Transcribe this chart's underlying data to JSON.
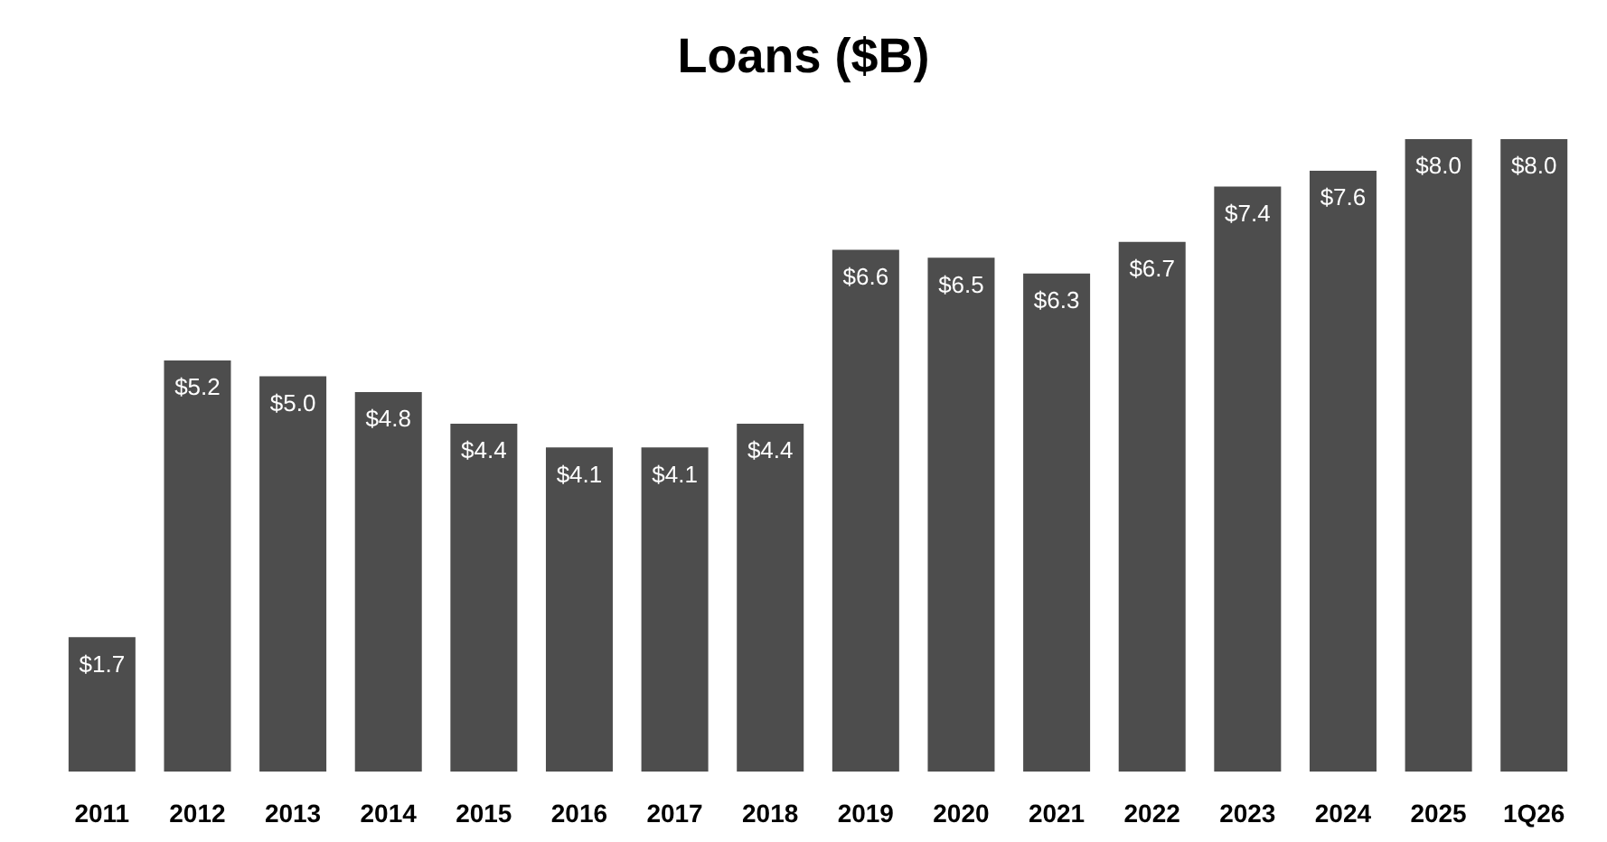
{
  "chart_data": {
    "type": "bar",
    "title": "Loans ($B)",
    "categories": [
      "2011",
      "2012",
      "2013",
      "2014",
      "2015",
      "2016",
      "2017",
      "2018",
      "2019",
      "2020",
      "2021",
      "2022",
      "2023",
      "2024",
      "2025",
      "1Q26"
    ],
    "values": [
      1.7,
      5.2,
      5.0,
      4.8,
      4.4,
      4.1,
      4.1,
      4.4,
      6.6,
      6.5,
      6.3,
      6.7,
      7.4,
      7.6,
      8.0,
      8.0
    ],
    "value_labels": [
      "$1.7",
      "$5.2",
      "$5.0",
      "$4.8",
      "$4.4",
      "$4.1",
      "$4.1",
      "$4.4",
      "$6.6",
      "$6.5",
      "$6.3",
      "$6.7",
      "$7.4",
      "$7.6",
      "$8.0",
      "$8.0"
    ],
    "color": "#4d4d4d",
    "grid": false,
    "legend": false
  }
}
